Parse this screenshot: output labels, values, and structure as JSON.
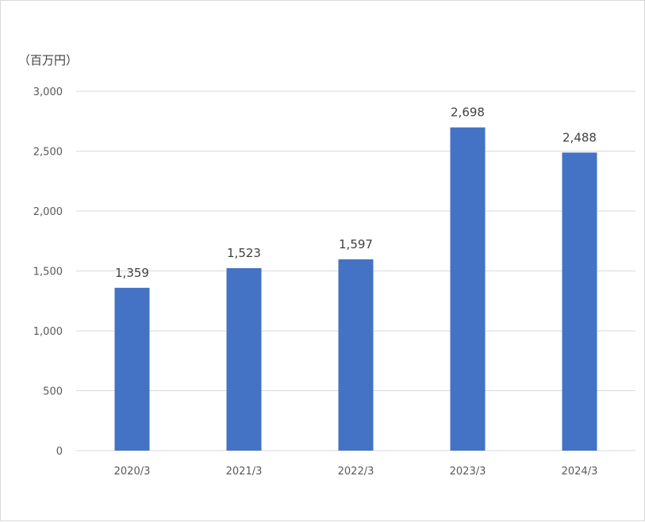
{
  "chart_data": {
    "type": "bar",
    "unit_label": "（百万円）",
    "categories": [
      "2020/3",
      "2021/3",
      "2022/3",
      "2023/3",
      "2024/3"
    ],
    "series": [
      {
        "values": [
          1359,
          1523,
          1597,
          2698,
          2488
        ]
      }
    ],
    "data_labels": [
      "1,359",
      "1,523",
      "1,597",
      "2,698",
      "2,488"
    ],
    "y_ticks": [
      0,
      500,
      1000,
      1500,
      2000,
      2500,
      3000
    ],
    "y_tick_labels": [
      "0",
      "500",
      "1,000",
      "1,500",
      "2,000",
      "2,500",
      "3,000"
    ],
    "ylim": [
      0,
      3000
    ],
    "grid": true,
    "legend": "none",
    "bar_color": "#4472c4",
    "grid_color": "#d9d9d9"
  }
}
